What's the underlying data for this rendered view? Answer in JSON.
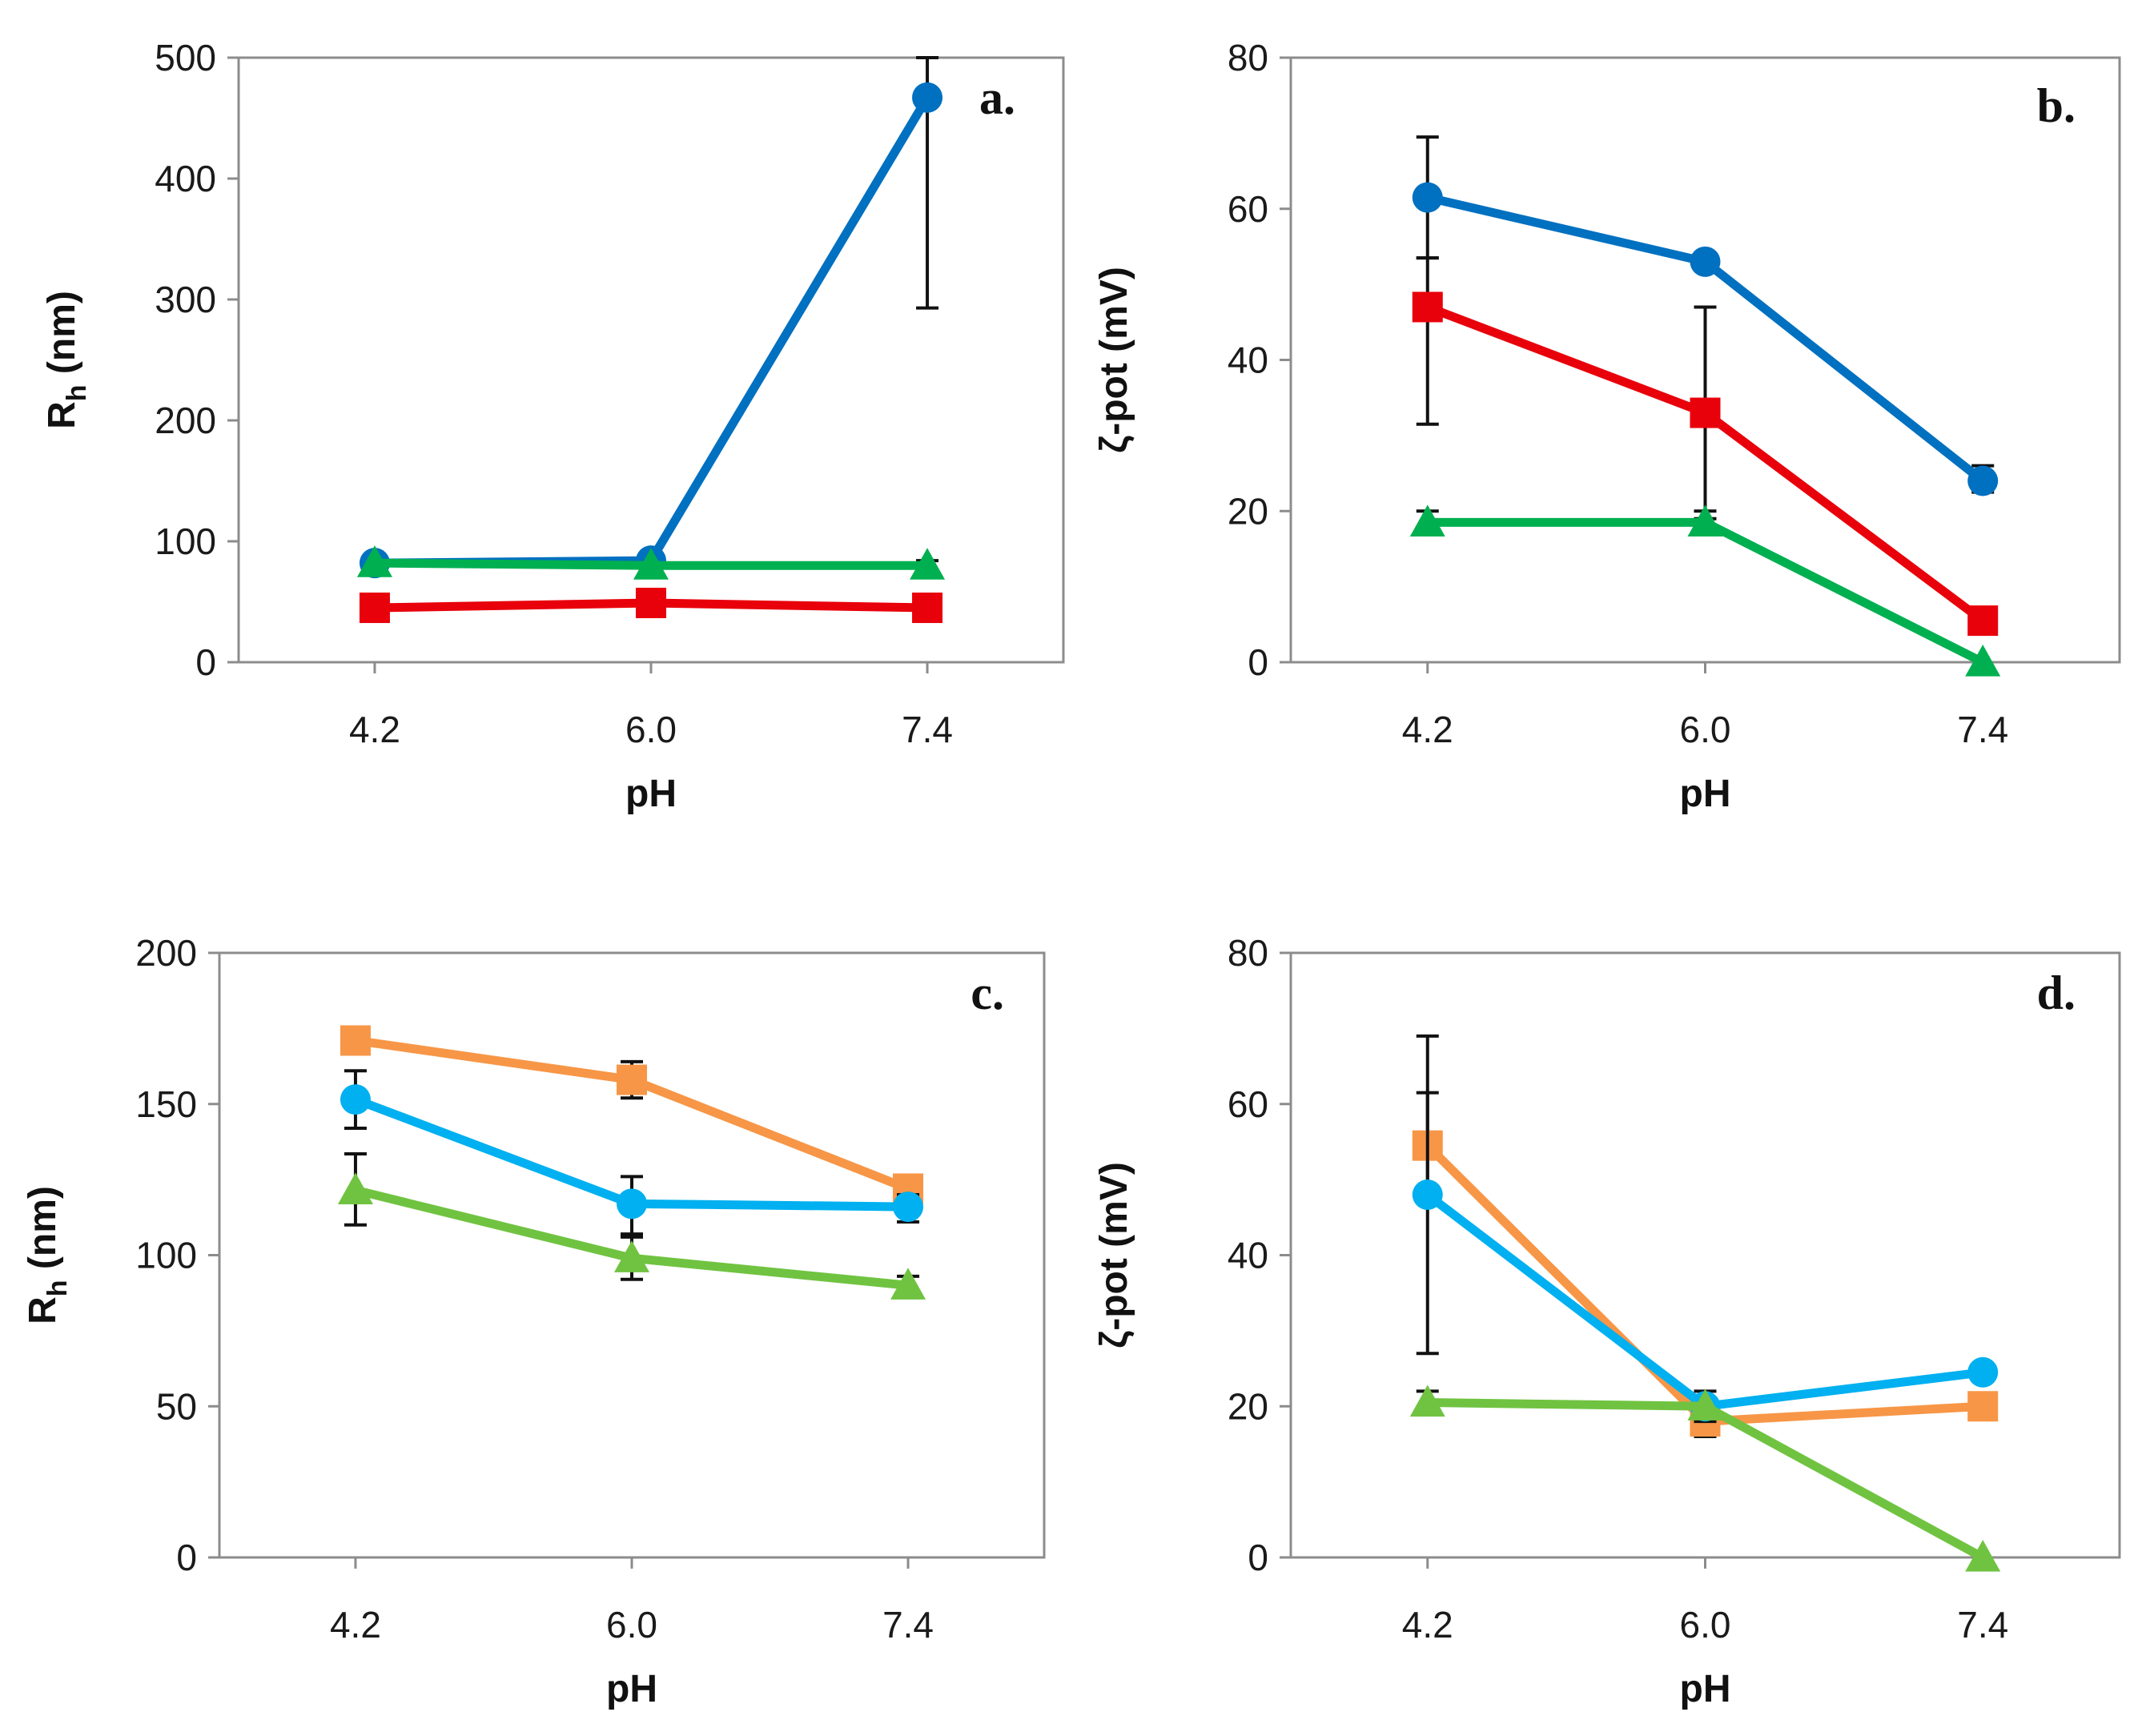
{
  "chart_data": [
    {
      "panel": "a.",
      "type": "line",
      "categories": [
        "4.2",
        "6.0",
        "7.4"
      ],
      "xlabel": "pH",
      "ylabel": "Rh (nm)",
      "ylabel_main": "R",
      "ylabel_sub": "h",
      "ylabel_rest": " (nm)",
      "ylim": [
        0,
        500
      ],
      "yticks": [
        "0",
        "100",
        "200",
        "300",
        "400",
        "500"
      ],
      "series": [
        {
          "name": "blue circles",
          "marker": "circle",
          "color": "#0070C0",
          "values": [
            82,
            84,
            467
          ],
          "errors": [
            null,
            null,
            [
              293,
              500
            ]
          ]
        },
        {
          "name": "red squares",
          "marker": "square",
          "color": "#E8000B",
          "values": [
            45,
            49,
            45
          ],
          "errors": [
            null,
            null,
            null
          ]
        },
        {
          "name": "green triangles",
          "marker": "triangle",
          "color": "#00B050",
          "values": [
            82,
            80,
            80
          ],
          "errors": [
            null,
            null,
            [
              76,
              84
            ]
          ]
        }
      ]
    },
    {
      "panel": "b.",
      "type": "line",
      "categories": [
        "4.2",
        "6.0",
        "7.4"
      ],
      "xlabel": "pH",
      "ylabel": "ζ-pot (mV)",
      "ylim": [
        0,
        80
      ],
      "yticks": [
        "0",
        "20",
        "40",
        "60",
        "80"
      ],
      "series": [
        {
          "name": "blue circles",
          "marker": "circle",
          "color": "#0070C0",
          "values": [
            61.5,
            53,
            24
          ],
          "errors": [
            [
              53.5,
              69.5
            ],
            null,
            [
              22.5,
              26
            ]
          ]
        },
        {
          "name": "red squares",
          "marker": "square",
          "color": "#E8000B",
          "values": [
            47,
            33,
            5.5
          ],
          "errors": [
            [
              31.5,
              53.5
            ],
            [
              19,
              47
            ],
            null
          ]
        },
        {
          "name": "green triangles",
          "marker": "triangle",
          "color": "#00B050",
          "values": [
            18.5,
            18.5,
            0
          ],
          "errors": [
            [
              17,
              20
            ],
            [
              17,
              20
            ],
            null
          ]
        }
      ]
    },
    {
      "panel": "c.",
      "type": "line",
      "categories": [
        "4.2",
        "6.0",
        "7.4"
      ],
      "xlabel": "pH",
      "ylabel": "Rh (nm)",
      "ylabel_main": "R",
      "ylabel_sub": "h",
      "ylabel_rest": " (nm)",
      "ylim": [
        0,
        200
      ],
      "yticks": [
        "0",
        "50",
        "100",
        "150",
        "200"
      ],
      "series": [
        {
          "name": "orange squares",
          "marker": "square",
          "color": "#F79646",
          "values": [
            171,
            158,
            122
          ],
          "errors": [
            null,
            [
              152,
              164
            ],
            [
              118,
              126
            ]
          ]
        },
        {
          "name": "cyan circles",
          "marker": "circle",
          "color": "#00B0F0",
          "values": [
            151.5,
            117,
            116
          ],
          "errors": [
            [
              142,
              161
            ],
            [
              107,
              126
            ],
            [
              111,
              120
            ]
          ]
        },
        {
          "name": "light green triangles",
          "marker": "triangle",
          "color": "#70C341",
          "values": [
            121.5,
            99,
            90
          ],
          "errors": [
            [
              110,
              133.5
            ],
            [
              92,
              106
            ],
            [
              87,
              93
            ]
          ]
        }
      ]
    },
    {
      "panel": "d.",
      "type": "line",
      "categories": [
        "4.2",
        "6.0",
        "7.4"
      ],
      "xlabel": "pH",
      "ylabel": "ζ-pot (mV)",
      "ylim": [
        0,
        80
      ],
      "yticks": [
        "0",
        "20",
        "40",
        "60",
        "80"
      ],
      "series": [
        {
          "name": "orange squares",
          "marker": "square",
          "color": "#F79646",
          "values": [
            54.5,
            18,
            20
          ],
          "errors": [
            [
              47.5,
              61.5
            ],
            [
              16,
              20
            ],
            null
          ]
        },
        {
          "name": "cyan circles",
          "marker": "circle",
          "color": "#00B0F0",
          "values": [
            48,
            20,
            24.5
          ],
          "errors": [
            [
              27,
              69
            ],
            [
              18,
              22
            ],
            null
          ]
        },
        {
          "name": "light green triangles",
          "marker": "triangle",
          "color": "#70C341",
          "values": [
            20.5,
            20,
            0
          ],
          "errors": [
            [
              19,
              22
            ],
            null,
            null
          ]
        }
      ]
    }
  ]
}
